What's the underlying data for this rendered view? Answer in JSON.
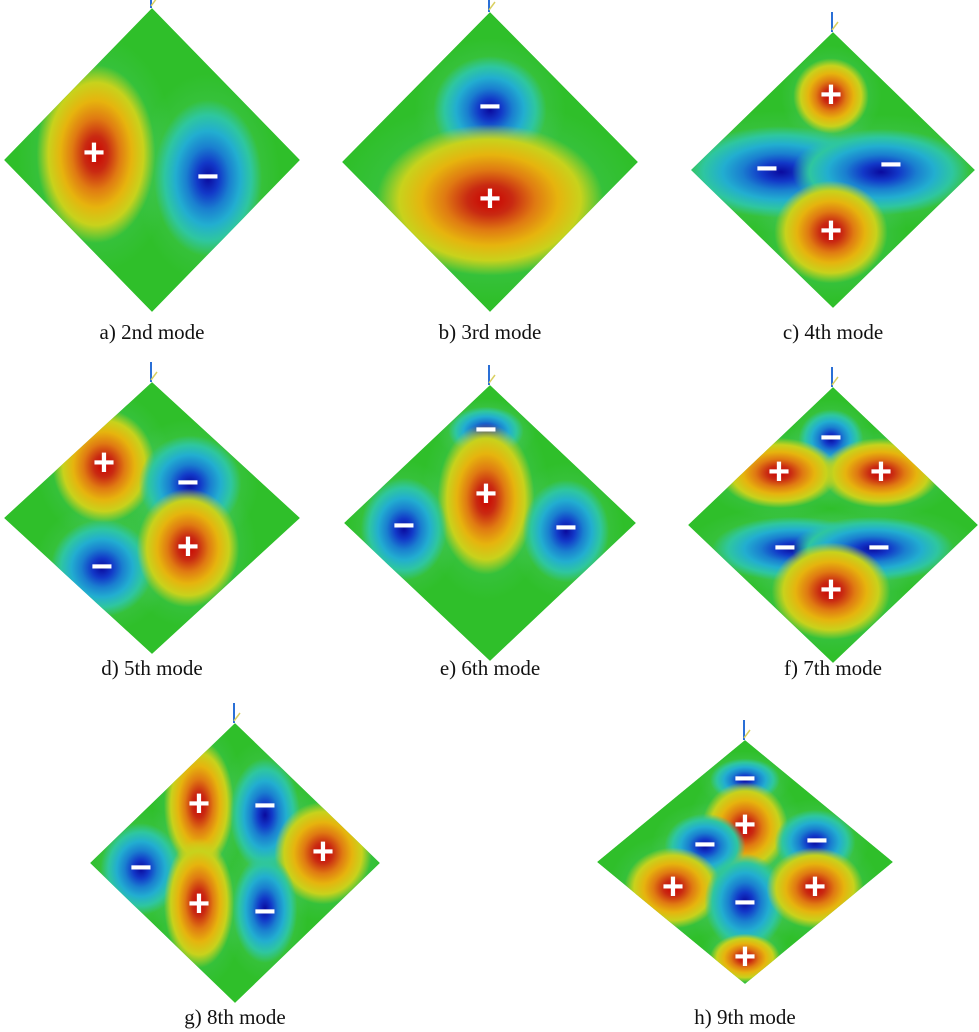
{
  "figure": {
    "panels": [
      {
        "id": "a",
        "caption": "a) 2nd mode",
        "blobs": [
          {
            "sign": "+"
          },
          {
            "sign": "−"
          }
        ]
      },
      {
        "id": "b",
        "caption": "b) 3rd mode",
        "blobs": [
          {
            "sign": "−"
          },
          {
            "sign": "+"
          }
        ]
      },
      {
        "id": "c",
        "caption": "c) 4th mode",
        "blobs": [
          {
            "sign": "+"
          },
          {
            "sign": "−"
          },
          {
            "sign": "−"
          },
          {
            "sign": "+"
          }
        ]
      },
      {
        "id": "d",
        "caption": "d) 5th mode",
        "blobs": [
          {
            "sign": "+"
          },
          {
            "sign": "−"
          },
          {
            "sign": "−"
          },
          {
            "sign": "+"
          }
        ]
      },
      {
        "id": "e",
        "caption": "e) 6th mode",
        "blobs": [
          {
            "sign": "−"
          },
          {
            "sign": "+"
          },
          {
            "sign": "−"
          },
          {
            "sign": "−"
          }
        ]
      },
      {
        "id": "f",
        "caption": "f) 7th mode",
        "blobs": [
          {
            "sign": "−"
          },
          {
            "sign": "+"
          },
          {
            "sign": "+"
          },
          {
            "sign": "−"
          },
          {
            "sign": "−"
          },
          {
            "sign": "+"
          }
        ]
      },
      {
        "id": "g",
        "caption": "g) 8th mode",
        "blobs": [
          {
            "sign": "+"
          },
          {
            "sign": "−"
          },
          {
            "sign": "−"
          },
          {
            "sign": "+"
          },
          {
            "sign": "+"
          },
          {
            "sign": "−"
          }
        ]
      },
      {
        "id": "h",
        "caption": "h) 9th mode",
        "blobs": [
          {
            "sign": "−"
          },
          {
            "sign": "+"
          },
          {
            "sign": "−"
          },
          {
            "sign": "−"
          },
          {
            "sign": "+"
          },
          {
            "sign": "−"
          },
          {
            "sign": "+"
          },
          {
            "sign": "+"
          }
        ]
      }
    ],
    "colors": {
      "background_field": "#2fbf2a",
      "positive": [
        "#c8d21c",
        "#e6b40e",
        "#e07a12",
        "#c92a12",
        "#cc0000"
      ],
      "negative": [
        "#2ec6a0",
        "#22aed0",
        "#1a7fd0",
        "#1238c8",
        "#0a0a9e"
      ],
      "sign_text": "#ffffff",
      "axis_triad": "#2a6fd6"
    }
  }
}
